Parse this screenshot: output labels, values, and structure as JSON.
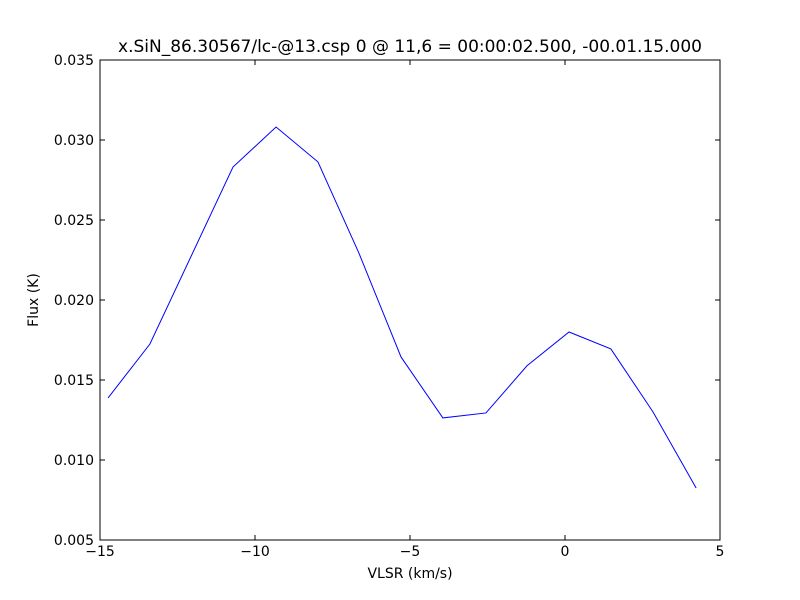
{
  "chart_data": {
    "type": "line",
    "title": "x.SiN_86.30567/lc-@13.csp 0 @ 11,6 = 00:00:02.500, -00.01.15.000",
    "x_label": "VLSR (km/s)",
    "y_label": "Flux (K)",
    "x": [
      -14.74,
      -13.39,
      -10.71,
      -9.32,
      -7.97,
      -6.65,
      -5.29,
      -3.94,
      -2.55,
      -1.23,
      0.13,
      1.48,
      2.84,
      4.23
    ],
    "series": [
      {
        "color": "#0000ff",
        "values": [
          0.01388,
          0.01725,
          0.02831,
          0.03081,
          0.02863,
          0.02294,
          0.01644,
          0.01263,
          0.01294,
          0.01588,
          0.018,
          0.01694,
          0.013,
          0.00825
        ]
      }
    ],
    "xlim": [
      -15,
      5
    ],
    "ylim": [
      0.005,
      0.035
    ],
    "xticks": [
      {
        "value": -15,
        "label": "−15"
      },
      {
        "value": -10,
        "label": "−10"
      },
      {
        "value": -5,
        "label": "−5"
      },
      0,
      5
    ],
    "yticks": [
      0.005,
      {
        "value": 0.01,
        "label": "0.010"
      },
      0.015,
      {
        "value": 0.02,
        "label": "0.020"
      },
      0.025,
      {
        "value": 0.03,
        "label": "0.030"
      },
      0.035
    ],
    "grid": false
  }
}
